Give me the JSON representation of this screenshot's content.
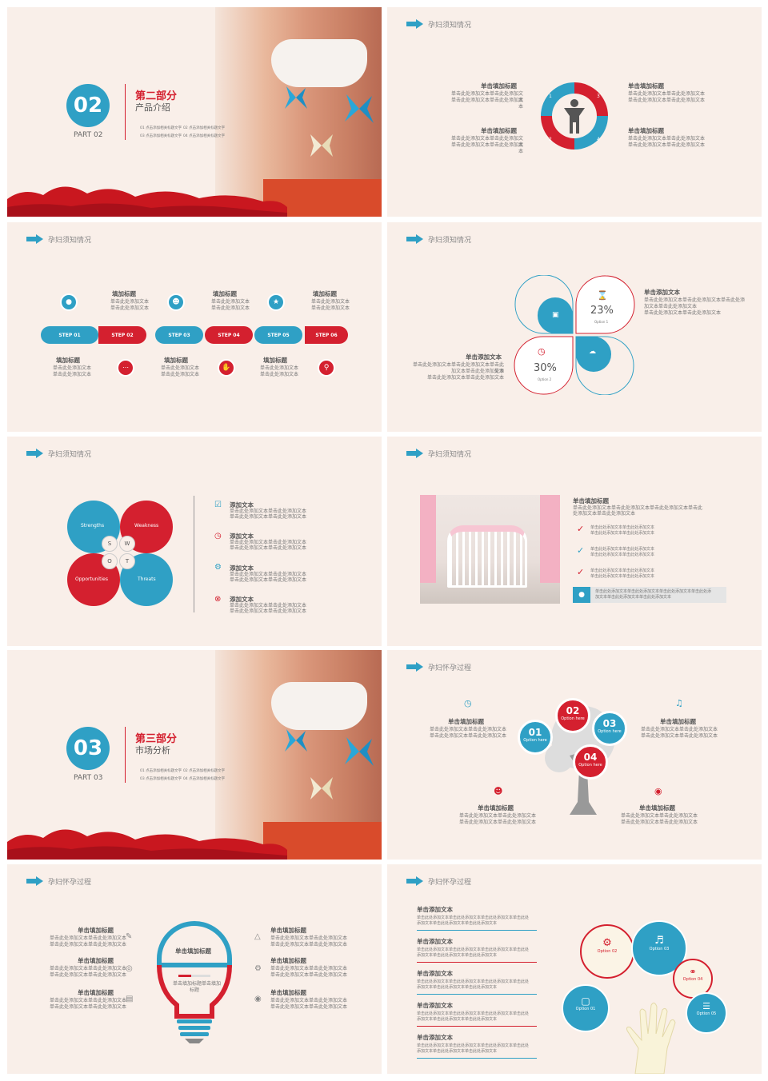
{
  "colors": {
    "red": "#d4202f",
    "blue": "#2fa0c5",
    "bg": "#f9efe9"
  },
  "s1": {
    "num": "02",
    "part": "PART 02",
    "title": "第二部分",
    "subtitle": "产品介绍",
    "items": [
      "01 点击添加相关标题文字",
      "02 点击添加相关标题文字",
      "03 点击添加相关标题文字",
      "04 点击添加相关标题文字"
    ]
  },
  "s2": {
    "header": "孕妇须知情况",
    "tl": "单击填加标题",
    "tr": "单击填加标题",
    "bl": "单击填加标题",
    "br": "单击填加标题",
    "desc1": "单击此处添加文本单击此处添加文本",
    "desc2": "单击此处添加文本单击此处添加文本",
    "desc3": "单击此处添加文本单击此处添加文本",
    "n1": "1",
    "n2": "2",
    "n3": "3",
    "n4": "4"
  },
  "s3": {
    "header": "孕妇须知情况",
    "steps": [
      "STEP 01",
      "STEP 02",
      "STEP 03",
      "STEP 04",
      "STEP 05",
      "STEP 06"
    ],
    "title": "填加标题",
    "d1": "单击此处添加文本",
    "d2": "单击此处添加文本"
  },
  "s4": {
    "header": "孕妇须知情况",
    "tr_title": "单击添加文本",
    "tr_d1": "单击此处添加文本单击此处添加文本单击此处添",
    "tr_d2": "加文本单击此处添加文本",
    "tr_d3": "单击此处添加文本单击此处添加文本",
    "bl_title": "单击添加文本",
    "bl_d1": "单击此处添加文本单击此处添加文本单击此处添",
    "bl_d2": "加文本单击此处添加文本",
    "bl_d3": "单击此处添加文本单击此处添加文本",
    "p1": "23%",
    "o1": "Option 1",
    "p2": "30%",
    "o2": "Option 2"
  },
  "s5": {
    "header": "孕妇须知情况",
    "q": [
      "Strengths",
      "Weakness",
      "Opportunities",
      "Threats"
    ],
    "l": [
      "S",
      "W",
      "O",
      "T"
    ],
    "item": "添加文本",
    "d1": "单击此处添加文本单击此处添加文本",
    "d2": "单击此处添加文本单击此处添加文本"
  },
  "s6": {
    "header": "孕妇须知情况",
    "title": "单击填加标题",
    "d1": "单击此处添加文本单击此处添加文本单击此处添加文本单击此",
    "d2": "处添加文本单击此处添加文本",
    "c": "单击此处添加文本单击此处添加文本",
    "c2": "单击此处添加文本单击此处添加文本",
    "tip1": "单击此处添加文本单击此处添加文本单击此处添加文本单击此处添",
    "tip2": "加文本单击此处添加文本单击此处添加文本"
  },
  "s7": {
    "num": "03",
    "part": "PART 03",
    "title": "第三部分",
    "subtitle": "市场分析",
    "items": [
      "01 点击添加相关标题文字",
      "02 点击添加相关标题文字",
      "03 点击添加相关标题文字",
      "04 点击添加相关标题文字"
    ]
  },
  "s8": {
    "header": "孕妇怀孕过程",
    "title": "单击填加标题",
    "d1": "单击此处添加文本单击此处添加文本",
    "d2": "单击此处添加文本单击此处添加文本",
    "b": [
      "01",
      "02",
      "03",
      "04"
    ],
    "opt": "Option here"
  },
  "s9": {
    "header": "孕妇怀孕过程",
    "title": "单击填加标题",
    "d1": "单击此处添加文本单击此处添加文本",
    "d2": "单击此处添加文本单击此处添加文本",
    "bulb_title": "单击填加标题",
    "bulb_d1": "单击填加标题单击填加",
    "bulb_d2": "标题"
  },
  "s10": {
    "header": "孕妇怀孕过程",
    "title": "单击添加文本",
    "d1": "单击此处添加文本单击此处添加文本单击此处添加文本单击此处",
    "d2": "添加文本单击此处添加文本单击此处添加文本",
    "opts": [
      "Option 01",
      "Option 02",
      "Option 03",
      "Option 04",
      "Option 05"
    ]
  }
}
